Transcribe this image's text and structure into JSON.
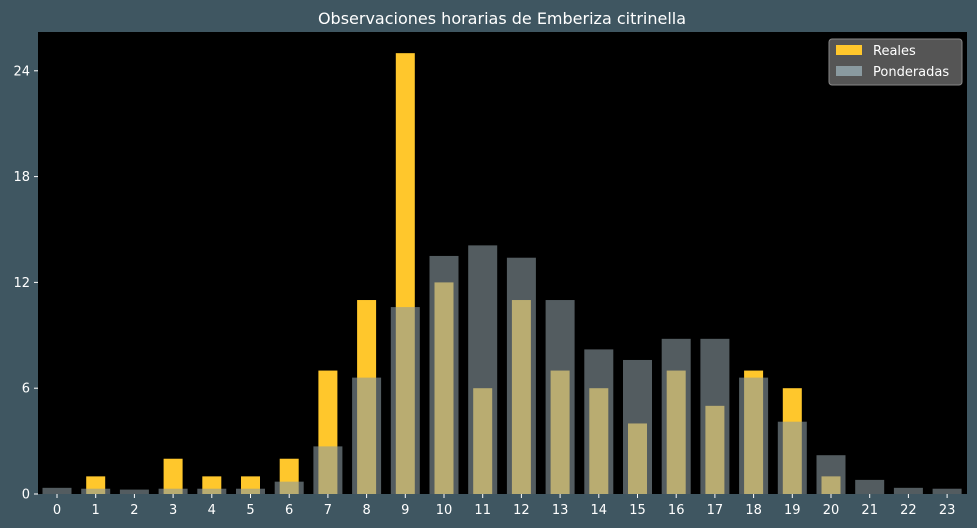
{
  "chart_data": {
    "type": "bar",
    "title": "Observaciones horarias de Emberiza citrinella",
    "xlabel": "",
    "ylabel": "",
    "categories": [
      "0",
      "1",
      "2",
      "3",
      "4",
      "5",
      "6",
      "7",
      "8",
      "9",
      "10",
      "11",
      "12",
      "13",
      "14",
      "15",
      "16",
      "17",
      "18",
      "19",
      "20",
      "21",
      "22",
      "23"
    ],
    "ylim": [
      0,
      26.2
    ],
    "yticks": [
      0,
      6,
      12,
      18,
      24
    ],
    "grid": false,
    "legend_position": "top-right",
    "series": [
      {
        "name": "Reales",
        "color": "#ffc72c",
        "values": [
          0,
          1,
          0,
          2,
          1,
          1,
          2,
          7,
          11,
          25,
          12,
          6,
          11,
          7,
          6,
          4,
          7,
          5,
          7,
          6,
          1,
          0,
          0,
          0
        ]
      },
      {
        "name": "Ponderadas",
        "color": "#8a9aa0",
        "opacity": 0.6,
        "values": [
          0.35,
          0.3,
          0.25,
          0.3,
          0.3,
          0.3,
          0.7,
          2.7,
          6.6,
          10.6,
          13.5,
          14.1,
          13.4,
          11.0,
          8.2,
          7.6,
          8.8,
          8.8,
          6.6,
          4.1,
          2.2,
          0.8,
          0.35,
          0.3
        ]
      }
    ],
    "colors": {
      "background": "#3f5661",
      "plot_background": "#000000",
      "text": "#ffffff",
      "legend_background": "#555555"
    }
  }
}
